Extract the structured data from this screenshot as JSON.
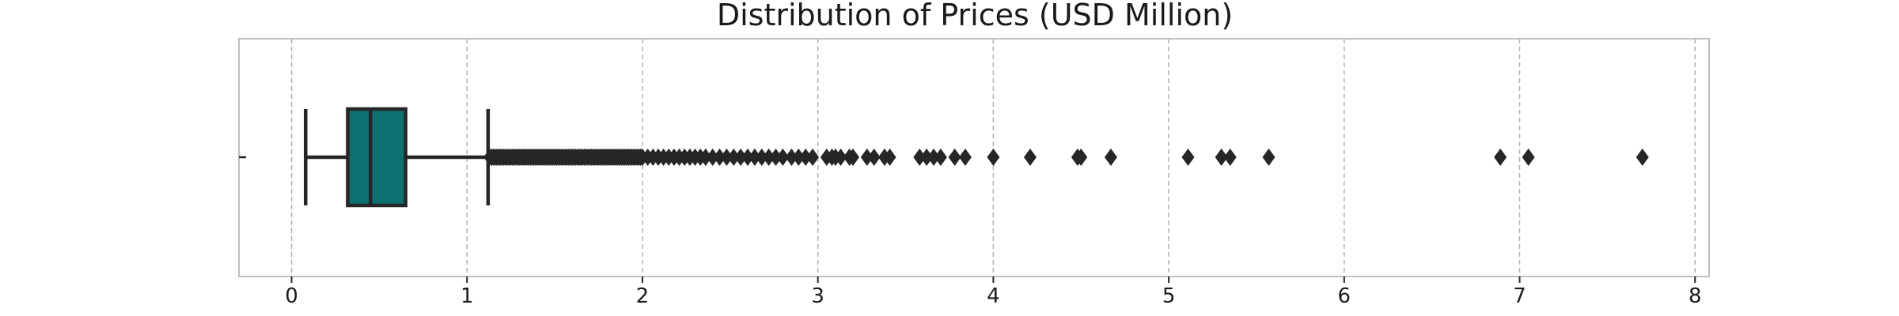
{
  "chart_data": {
    "type": "box",
    "title": "Distribution of Prices (USD Million)",
    "xlabel": "",
    "ylabel": "",
    "xlim": [
      -0.3,
      8.08
    ],
    "xticks": [
      0,
      1,
      2,
      3,
      4,
      5,
      6,
      7,
      8
    ],
    "xtick_labels": [
      "0",
      "1",
      "2",
      "3",
      "4",
      "5",
      "6",
      "7",
      "8"
    ],
    "grid": "x-dashed",
    "box": {
      "whisker_low": 0.08,
      "q1": 0.32,
      "median": 0.45,
      "q3": 0.65,
      "whisker_high": 1.12,
      "color": "#0e7070"
    },
    "outliers": [
      1.13,
      1.14,
      1.15,
      1.16,
      1.17,
      1.18,
      1.19,
      1.2,
      1.21,
      1.22,
      1.23,
      1.24,
      1.25,
      1.26,
      1.27,
      1.28,
      1.29,
      1.3,
      1.31,
      1.32,
      1.33,
      1.34,
      1.35,
      1.36,
      1.37,
      1.38,
      1.39,
      1.4,
      1.41,
      1.42,
      1.43,
      1.44,
      1.45,
      1.46,
      1.47,
      1.48,
      1.49,
      1.5,
      1.51,
      1.52,
      1.53,
      1.54,
      1.55,
      1.56,
      1.57,
      1.58,
      1.59,
      1.6,
      1.61,
      1.62,
      1.63,
      1.64,
      1.65,
      1.66,
      1.67,
      1.68,
      1.69,
      1.7,
      1.71,
      1.72,
      1.73,
      1.74,
      1.75,
      1.76,
      1.77,
      1.78,
      1.79,
      1.8,
      1.81,
      1.82,
      1.83,
      1.84,
      1.85,
      1.86,
      1.87,
      1.88,
      1.89,
      1.9,
      1.91,
      1.92,
      1.93,
      1.94,
      1.95,
      1.96,
      1.97,
      1.98,
      1.99,
      2.0,
      2.03,
      2.06,
      2.09,
      2.12,
      2.15,
      2.18,
      2.21,
      2.24,
      2.27,
      2.3,
      2.33,
      2.36,
      2.4,
      2.44,
      2.48,
      2.52,
      2.56,
      2.6,
      2.64,
      2.68,
      2.72,
      2.76,
      2.8,
      2.85,
      2.89,
      2.93,
      2.97,
      3.05,
      3.08,
      3.1,
      3.13,
      3.18,
      3.2,
      3.28,
      3.32,
      3.38,
      3.41,
      3.58,
      3.62,
      3.66,
      3.7,
      3.78,
      3.84,
      4.0,
      4.21,
      4.48,
      4.5,
      4.67,
      5.11,
      5.3,
      5.35,
      5.57,
      6.89,
      7.05,
      7.7
    ]
  }
}
